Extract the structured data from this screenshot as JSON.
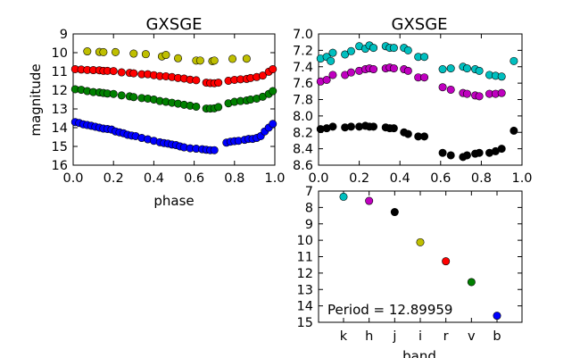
{
  "colors": {
    "k": "#00bfbf",
    "h": "#bf00bf",
    "j": "#000000",
    "i": "#bfbf00",
    "r": "#ff0000",
    "v": "#008000",
    "b": "#0000ff"
  },
  "chart_data": [
    {
      "type": "scatter",
      "title": "GXSGE",
      "xlabel": "phase",
      "ylabel": "magnitude",
      "xlim": [
        0.0,
        1.0
      ],
      "ylim": [
        9,
        16
      ],
      "y_inverted": true,
      "xticks": [
        "0.0",
        "0.2",
        "0.4",
        "0.6",
        "0.8",
        "1.0"
      ],
      "yticks": [
        "9",
        "10",
        "11",
        "12",
        "13",
        "14",
        "15",
        "16"
      ],
      "series": [
        {
          "band": "i",
          "color": "i",
          "x": [
            0.07,
            0.13,
            0.15,
            0.21,
            0.3,
            0.36,
            0.44,
            0.46,
            0.52,
            0.61,
            0.63,
            0.69,
            0.7,
            0.79,
            0.86
          ],
          "y": [
            9.93,
            9.96,
            9.97,
            9.97,
            10.05,
            10.08,
            10.2,
            10.12,
            10.3,
            10.42,
            10.42,
            10.45,
            10.42,
            10.33,
            10.32
          ]
        },
        {
          "band": "r",
          "color": "r",
          "x": [
            0.01,
            0.04,
            0.07,
            0.1,
            0.13,
            0.15,
            0.17,
            0.2,
            0.24,
            0.28,
            0.3,
            0.34,
            0.37,
            0.4,
            0.43,
            0.46,
            0.49,
            0.52,
            0.55,
            0.58,
            0.61,
            0.66,
            0.68,
            0.7,
            0.72,
            0.77,
            0.8,
            0.83,
            0.86,
            0.88,
            0.91,
            0.94,
            0.97,
            0.99
          ],
          "y": [
            10.88,
            10.9,
            10.92,
            10.93,
            10.94,
            10.97,
            10.97,
            10.98,
            11.05,
            11.08,
            11.1,
            11.15,
            11.15,
            11.2,
            11.25,
            11.26,
            11.3,
            11.35,
            11.38,
            11.44,
            11.47,
            11.6,
            11.62,
            11.63,
            11.6,
            11.5,
            11.45,
            11.42,
            11.4,
            11.35,
            11.3,
            11.22,
            11.02,
            10.88
          ]
        },
        {
          "band": "v",
          "color": "v",
          "x": [
            0.01,
            0.04,
            0.07,
            0.1,
            0.13,
            0.15,
            0.17,
            0.2,
            0.24,
            0.28,
            0.3,
            0.34,
            0.37,
            0.4,
            0.43,
            0.46,
            0.49,
            0.52,
            0.55,
            0.58,
            0.61,
            0.66,
            0.68,
            0.7,
            0.72,
            0.77,
            0.8,
            0.83,
            0.86,
            0.88,
            0.91,
            0.94,
            0.97,
            0.99
          ],
          "y": [
            11.95,
            11.98,
            12.05,
            12.1,
            12.12,
            12.15,
            12.18,
            12.2,
            12.28,
            12.33,
            12.37,
            12.42,
            12.45,
            12.5,
            12.58,
            12.62,
            12.67,
            12.72,
            12.78,
            12.83,
            12.88,
            12.98,
            12.98,
            12.97,
            12.9,
            12.7,
            12.62,
            12.58,
            12.55,
            12.5,
            12.45,
            12.35,
            12.2,
            12.05
          ]
        },
        {
          "band": "b",
          "color": "b",
          "x": [
            0.01,
            0.03,
            0.05,
            0.07,
            0.09,
            0.11,
            0.13,
            0.15,
            0.17,
            0.19,
            0.21,
            0.23,
            0.25,
            0.27,
            0.29,
            0.31,
            0.34,
            0.37,
            0.4,
            0.43,
            0.45,
            0.47,
            0.49,
            0.51,
            0.53,
            0.55,
            0.58,
            0.61,
            0.64,
            0.66,
            0.68,
            0.7,
            0.76,
            0.78,
            0.8,
            0.82,
            0.85,
            0.87,
            0.89,
            0.91,
            0.93,
            0.95,
            0.97,
            0.99
          ],
          "y": [
            13.7,
            13.75,
            13.82,
            13.86,
            13.9,
            13.95,
            14.0,
            14.05,
            14.07,
            14.1,
            14.2,
            14.25,
            14.3,
            14.38,
            14.42,
            14.45,
            14.55,
            14.62,
            14.7,
            14.78,
            14.82,
            14.85,
            14.9,
            14.93,
            15.0,
            15.05,
            15.1,
            15.12,
            15.15,
            15.18,
            15.2,
            15.2,
            14.8,
            14.75,
            14.72,
            14.7,
            14.65,
            14.6,
            14.6,
            14.55,
            14.45,
            14.2,
            14.0,
            13.8
          ]
        }
      ]
    },
    {
      "type": "scatter",
      "title": "GXSGE",
      "xlabel": "",
      "ylabel": "",
      "xlim": [
        0.0,
        1.0
      ],
      "ylim": [
        7.0,
        8.6
      ],
      "y_inverted": true,
      "xticks": [
        "0.0",
        "0.2",
        "0.4",
        "0.6",
        "0.8",
        "1.0"
      ],
      "yticks": [
        "7.0",
        "7.2",
        "7.4",
        "7.6",
        "7.8",
        "8.0",
        "8.2",
        "8.4",
        "8.6"
      ],
      "series": [
        {
          "band": "k",
          "color": "k",
          "x": [
            0.01,
            0.04,
            0.06,
            0.07,
            0.13,
            0.16,
            0.2,
            0.23,
            0.25,
            0.27,
            0.33,
            0.35,
            0.37,
            0.42,
            0.44,
            0.49,
            0.52,
            0.61,
            0.65,
            0.71,
            0.73,
            0.77,
            0.79,
            0.84,
            0.87,
            0.9,
            0.96
          ],
          "y": [
            7.3,
            7.28,
            7.33,
            7.23,
            7.25,
            7.21,
            7.15,
            7.18,
            7.14,
            7.17,
            7.15,
            7.17,
            7.17,
            7.17,
            7.2,
            7.28,
            7.28,
            7.43,
            7.42,
            7.4,
            7.42,
            7.43,
            7.45,
            7.5,
            7.51,
            7.52,
            7.33
          ]
        },
        {
          "band": "h",
          "color": "h",
          "x": [
            0.01,
            0.04,
            0.07,
            0.13,
            0.16,
            0.2,
            0.23,
            0.25,
            0.27,
            0.33,
            0.35,
            0.37,
            0.42,
            0.44,
            0.49,
            0.52,
            0.61,
            0.65,
            0.71,
            0.73,
            0.77,
            0.79,
            0.84,
            0.87,
            0.9
          ],
          "y": [
            7.58,
            7.56,
            7.5,
            7.5,
            7.47,
            7.45,
            7.43,
            7.42,
            7.43,
            7.42,
            7.41,
            7.42,
            7.43,
            7.45,
            7.53,
            7.53,
            7.65,
            7.68,
            7.72,
            7.73,
            7.75,
            7.76,
            7.73,
            7.73,
            7.72
          ]
        },
        {
          "band": "j",
          "color": "j",
          "x": [
            0.01,
            0.04,
            0.07,
            0.13,
            0.16,
            0.2,
            0.23,
            0.25,
            0.27,
            0.33,
            0.35,
            0.37,
            0.42,
            0.44,
            0.49,
            0.52,
            0.61,
            0.65,
            0.71,
            0.73,
            0.77,
            0.79,
            0.84,
            0.87,
            0.9,
            0.96
          ],
          "y": [
            8.16,
            8.15,
            8.13,
            8.14,
            8.13,
            8.13,
            8.12,
            8.13,
            8.13,
            8.14,
            8.15,
            8.15,
            8.2,
            8.22,
            8.25,
            8.25,
            8.45,
            8.48,
            8.5,
            8.48,
            8.46,
            8.45,
            8.45,
            8.43,
            8.4,
            8.18
          ]
        }
      ]
    },
    {
      "type": "scatter",
      "title": "",
      "xlabel": "band",
      "ylabel": "",
      "ylim": [
        7,
        15
      ],
      "y_inverted": true,
      "yticks": [
        "7",
        "8",
        "9",
        "10",
        "11",
        "12",
        "13",
        "14",
        "15"
      ],
      "categories": [
        "k",
        "h",
        "j",
        "i",
        "r",
        "v",
        "b"
      ],
      "values": [
        7.35,
        7.6,
        8.28,
        10.12,
        11.28,
        12.55,
        14.6
      ],
      "annotation": "Period = 12.89959"
    }
  ]
}
